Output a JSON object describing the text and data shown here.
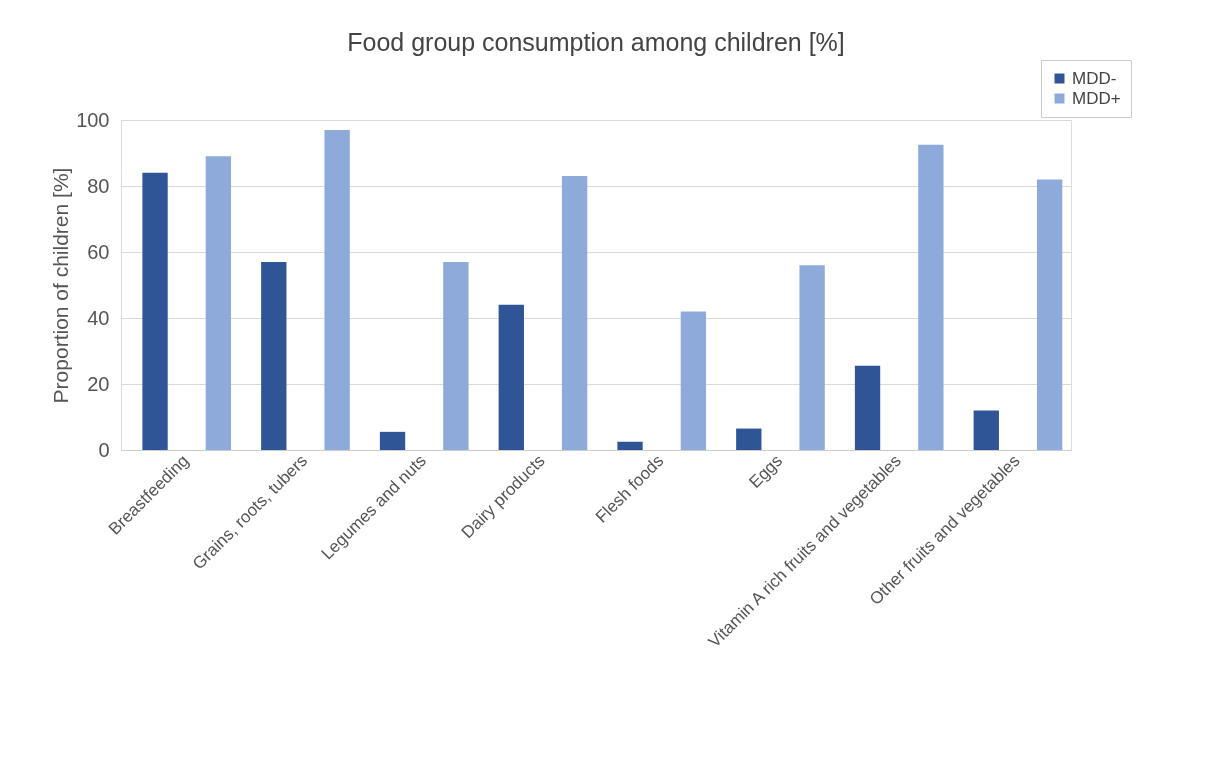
{
  "chart_data": {
    "type": "bar",
    "title": "Food group consumption among children [%]",
    "ylabel": "Proportion of children [%]",
    "categories": [
      "Breastfeeding",
      "Grains, roots, tubers",
      "Legumes and nuts",
      "Dairy products",
      "Flesh foods",
      "Eggs",
      "Vitamin A rich fruits and vegetables",
      "Other fruits and vegetables"
    ],
    "series": [
      {
        "name": "MDD-",
        "color": "#2f5597",
        "values": [
          84,
          57,
          5.5,
          44,
          2.5,
          6.5,
          25.5,
          12
        ]
      },
      {
        "name": "MDD+",
        "color": "#8eaadb",
        "values": [
          89,
          97,
          57,
          83,
          42,
          56,
          92.5,
          82
        ]
      }
    ],
    "ylim": [
      0,
      100
    ],
    "yticks": [
      0,
      20,
      40,
      60,
      80,
      100
    ],
    "grid": "y",
    "legend": "top right"
  }
}
